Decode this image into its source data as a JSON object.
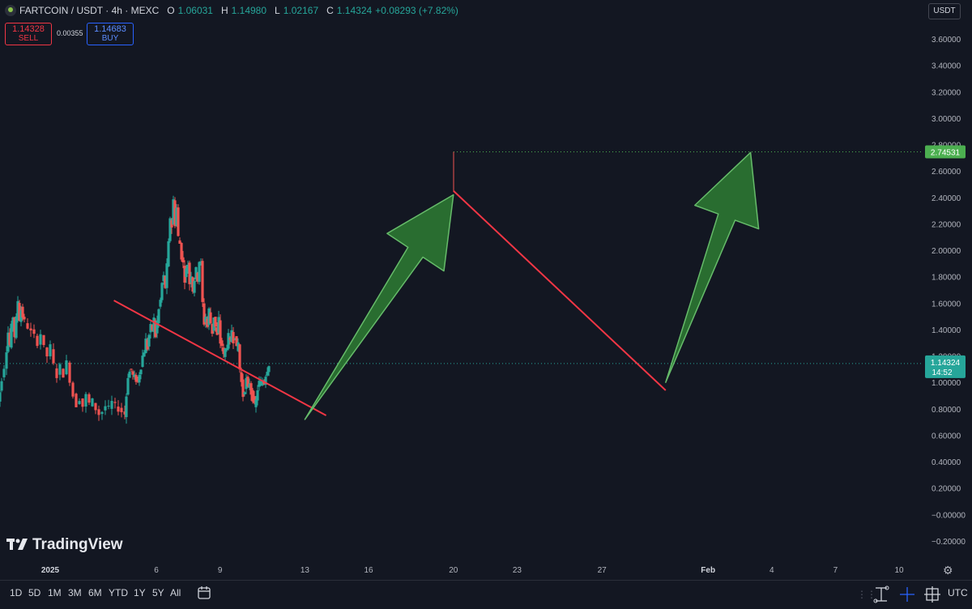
{
  "header": {
    "symbol": "FARTCOIN / USDT · 4h · MEXC",
    "o_label": "O",
    "o_value": "1.06031",
    "h_label": "H",
    "h_value": "1.14980",
    "l_label": "L",
    "l_value": "1.02167",
    "c_label": "C",
    "c_value": "1.14324",
    "change": "+0.08293 (+7.82%)"
  },
  "trade": {
    "sell_price": "1.14328",
    "sell_label": "SELL",
    "spread": "0.00355",
    "buy_price": "1.14683",
    "buy_label": "BUY"
  },
  "currency_button": "USDT",
  "watermark": "TradingView",
  "timeframes": [
    "1D",
    "5D",
    "1M",
    "3M",
    "6M",
    "YTD",
    "1Y",
    "5Y",
    "All"
  ],
  "utc_label": "UTC",
  "colors": {
    "up": "#26a69a",
    "down": "#ef5350",
    "trendline": "#f23645",
    "arrow": "#2e7d32",
    "background": "#131722"
  },
  "chart_data": {
    "type": "candlestick",
    "price_axis": [
      "3.60000",
      "3.40000",
      "3.20000",
      "3.00000",
      "2.80000",
      "2.60000",
      "2.40000",
      "2.20000",
      "2.00000",
      "1.80000",
      "1.60000",
      "1.40000",
      "1.20000",
      "1.00000",
      "0.80000",
      "0.60000",
      "0.40000",
      "0.20000",
      "−0.00000",
      "−0.20000"
    ],
    "ylim": [
      -0.28,
      3.72
    ],
    "time_axis": [
      "2025",
      "6",
      "9",
      "13",
      "16",
      "20",
      "23",
      "27",
      "Feb",
      "4",
      "7",
      "10"
    ],
    "current_price": {
      "label": "1.14324",
      "countdown": "14:52",
      "value": 1.14324
    },
    "target": {
      "label": "2.74531",
      "value": 2.74531
    },
    "trendlines": [
      {
        "from": [
          "Jan 4",
          1.62
        ],
        "to": [
          "Jan 14",
          0.75
        ]
      },
      {
        "from": [
          "Jan 20",
          2.45
        ],
        "to": [
          "Jan 30",
          0.94
        ]
      }
    ],
    "arrows": [
      {
        "from": [
          "Jan 13",
          0.72
        ],
        "to": [
          "Jan 20",
          2.42
        ]
      },
      {
        "from": [
          "Jan 30",
          1.0
        ],
        "to": [
          "Feb 3",
          2.74
        ]
      }
    ],
    "price_path": [
      [
        -4,
        0.86
      ],
      [
        -2,
        0.9
      ],
      [
        0,
        0.85
      ],
      [
        2,
        0.93
      ],
      [
        5,
        1.03
      ],
      [
        8,
        1.12
      ],
      [
        10,
        1.25
      ],
      [
        12,
        1.38
      ],
      [
        14,
        1.28
      ],
      [
        16,
        1.42
      ],
      [
        18,
        1.5
      ],
      [
        20,
        1.35
      ],
      [
        22,
        1.48
      ],
      [
        24,
        1.62
      ],
      [
        26,
        1.48
      ],
      [
        28,
        1.55
      ],
      [
        30,
        1.5
      ],
      [
        34,
        1.46
      ],
      [
        38,
        1.42
      ],
      [
        42,
        1.38
      ],
      [
        46,
        1.35
      ],
      [
        50,
        1.3
      ],
      [
        54,
        1.37
      ],
      [
        58,
        1.26
      ],
      [
        62,
        1.2
      ],
      [
        66,
        1.27
      ],
      [
        70,
        1.13
      ],
      [
        74,
        1.05
      ],
      [
        78,
        1.12
      ],
      [
        82,
        1.06
      ],
      [
        86,
        1.15
      ],
      [
        90,
        1.02
      ],
      [
        94,
        0.9
      ],
      [
        98,
        0.83
      ],
      [
        102,
        0.88
      ],
      [
        106,
        0.82
      ],
      [
        110,
        0.9
      ],
      [
        114,
        0.84
      ],
      [
        118,
        0.86
      ],
      [
        122,
        0.8
      ],
      [
        126,
        0.76
      ],
      [
        130,
        0.78
      ],
      [
        134,
        0.82
      ],
      [
        138,
        0.8
      ],
      [
        142,
        0.85
      ],
      [
        146,
        0.82
      ],
      [
        150,
        0.8
      ],
      [
        154,
        0.78
      ],
      [
        156,
        0.76
      ],
      [
        158,
        0.9
      ],
      [
        160,
        1.05
      ],
      [
        162,
        1.08
      ],
      [
        164,
        1.1
      ],
      [
        166,
        1.05
      ],
      [
        168,
        1.04
      ],
      [
        170,
        1.02
      ],
      [
        172,
        1.0
      ],
      [
        174,
        1.07
      ],
      [
        176,
        1.12
      ],
      [
        178,
        1.2
      ],
      [
        180,
        1.24
      ],
      [
        182,
        1.32
      ],
      [
        184,
        1.26
      ],
      [
        186,
        1.36
      ],
      [
        188,
        1.42
      ],
      [
        190,
        1.4
      ],
      [
        192,
        1.48
      ],
      [
        194,
        1.35
      ],
      [
        196,
        1.46
      ],
      [
        198,
        1.55
      ],
      [
        200,
        1.62
      ],
      [
        202,
        1.75
      ],
      [
        204,
        1.8
      ],
      [
        206,
        1.72
      ],
      [
        208,
        1.88
      ],
      [
        210,
        2.05
      ],
      [
        212,
        2.25
      ],
      [
        214,
        2.18
      ],
      [
        216,
        2.38
      ],
      [
        218,
        2.2
      ],
      [
        220,
        2.32
      ],
      [
        222,
        2.1
      ],
      [
        224,
        2.05
      ],
      [
        226,
        1.95
      ],
      [
        228,
        1.9
      ],
      [
        230,
        1.78
      ],
      [
        232,
        1.85
      ],
      [
        234,
        1.9
      ],
      [
        236,
        1.75
      ],
      [
        238,
        1.82
      ],
      [
        240,
        1.7
      ],
      [
        242,
        1.78
      ],
      [
        244,
        1.85
      ],
      [
        246,
        1.78
      ],
      [
        248,
        1.92
      ],
      [
        250,
        1.9
      ],
      [
        252,
        1.6
      ],
      [
        254,
        1.45
      ],
      [
        256,
        1.5
      ],
      [
        258,
        1.42
      ],
      [
        260,
        1.55
      ],
      [
        262,
        1.45
      ],
      [
        264,
        1.38
      ],
      [
        266,
        1.5
      ],
      [
        268,
        1.42
      ],
      [
        270,
        1.35
      ],
      [
        272,
        1.48
      ],
      [
        274,
        1.3
      ],
      [
        276,
        1.28
      ],
      [
        278,
        1.2
      ],
      [
        280,
        1.25
      ],
      [
        282,
        1.28
      ],
      [
        284,
        1.35
      ],
      [
        286,
        1.3
      ],
      [
        288,
        1.4
      ],
      [
        290,
        1.32
      ],
      [
        292,
        1.36
      ],
      [
        294,
        1.25
      ],
      [
        296,
        1.3
      ],
      [
        298,
        1.1
      ],
      [
        300,
        1.0
      ],
      [
        302,
        0.9
      ],
      [
        304,
        0.95
      ],
      [
        306,
        1.02
      ],
      [
        308,
        0.95
      ],
      [
        310,
        1.0
      ],
      [
        312,
        0.92
      ],
      [
        314,
        0.88
      ],
      [
        316,
        0.82
      ],
      [
        318,
        0.86
      ],
      [
        320,
        0.95
      ],
      [
        322,
        1.0
      ],
      [
        324,
        0.98
      ],
      [
        326,
        1.02
      ],
      [
        328,
        1.0
      ],
      [
        330,
        1.06
      ],
      [
        332,
        1.1
      ],
      [
        334,
        1.14
      ]
    ]
  }
}
